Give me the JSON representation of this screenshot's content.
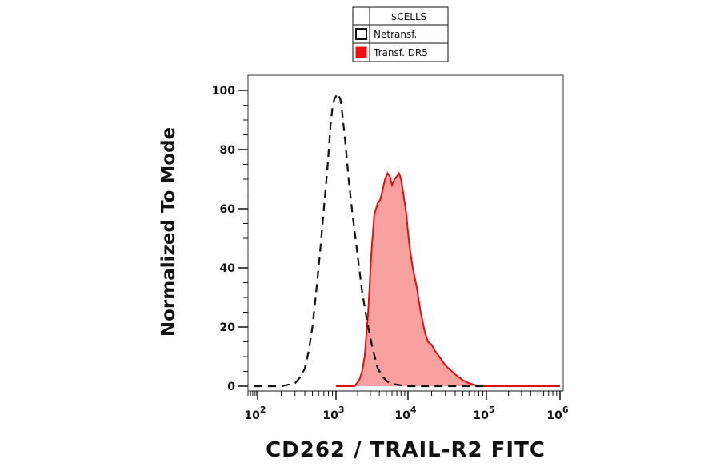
{
  "chart_data": {
    "type": "area",
    "xlabel": "CD262 / TRAIL-R2 FITC",
    "ylabel": "Normalized To Mode",
    "x_scale": "log",
    "xlim": [
      50,
      1000000
    ],
    "ylim": [
      0,
      100
    ],
    "x_tick_labels": [
      {
        "value": 100,
        "base": "10",
        "exp": "2"
      },
      {
        "value": 1000,
        "base": "10",
        "exp": "3"
      },
      {
        "value": 10000,
        "base": "10",
        "exp": "4"
      },
      {
        "value": 100000,
        "base": "10",
        "exp": "5"
      },
      {
        "value": 1000000,
        "base": "10",
        "exp": "6"
      }
    ],
    "y_ticks": [
      {
        "value": 0,
        "label": "0"
      },
      {
        "value": 20,
        "label": "20"
      },
      {
        "value": 40,
        "label": "40"
      },
      {
        "value": 60,
        "label": "60"
      },
      {
        "value": 80,
        "label": "80"
      },
      {
        "value": 100,
        "label": "100"
      }
    ],
    "legend": {
      "header": "$CELLS",
      "placement": "top-center"
    },
    "series": [
      {
        "name": "Netransf.",
        "style": "dashed-outline",
        "color": "#111111",
        "fill": "#ffffff",
        "x": [
          80,
          200,
          300,
          350,
          400,
          450,
          500,
          560,
          630,
          700,
          780,
          850,
          900,
          950,
          1000,
          1050,
          1100,
          1150,
          1200,
          1300,
          1400,
          1500,
          1700,
          2000,
          2300,
          2700,
          3200,
          3800,
          4500,
          5500,
          7000,
          10000,
          30000,
          100000
        ],
        "y": [
          0,
          0,
          1,
          3,
          6,
          12,
          20,
          32,
          46,
          60,
          74,
          88,
          94,
          97,
          98,
          99,
          98,
          97,
          94,
          86,
          78,
          70,
          58,
          44,
          32,
          22,
          13,
          6,
          3,
          1,
          0.5,
          0,
          0,
          0
        ]
      },
      {
        "name": "Transf. DR5",
        "style": "filled",
        "color": "#dd1111",
        "fill": "#f7a0a0",
        "x": [
          1000,
          1800,
          2100,
          2300,
          2500,
          2800,
          3100,
          3400,
          3800,
          4100,
          4400,
          4800,
          5200,
          5600,
          6000,
          6500,
          7000,
          7500,
          8000,
          8500,
          9000,
          9500,
          10000,
          10500,
          11500,
          13000,
          14500,
          16500,
          18000,
          20000,
          22000,
          25000,
          30000,
          40000,
          50000,
          60000,
          80000,
          200000,
          1000000
        ],
        "y": [
          0,
          0,
          2,
          5,
          10,
          25,
          45,
          58,
          62,
          63,
          66,
          70,
          72,
          71,
          68,
          70,
          71,
          72,
          70,
          66,
          62,
          58,
          52,
          47,
          40,
          33,
          25,
          18,
          15,
          14,
          12,
          10,
          7,
          4,
          2,
          1,
          0,
          0,
          0
        ]
      }
    ]
  }
}
